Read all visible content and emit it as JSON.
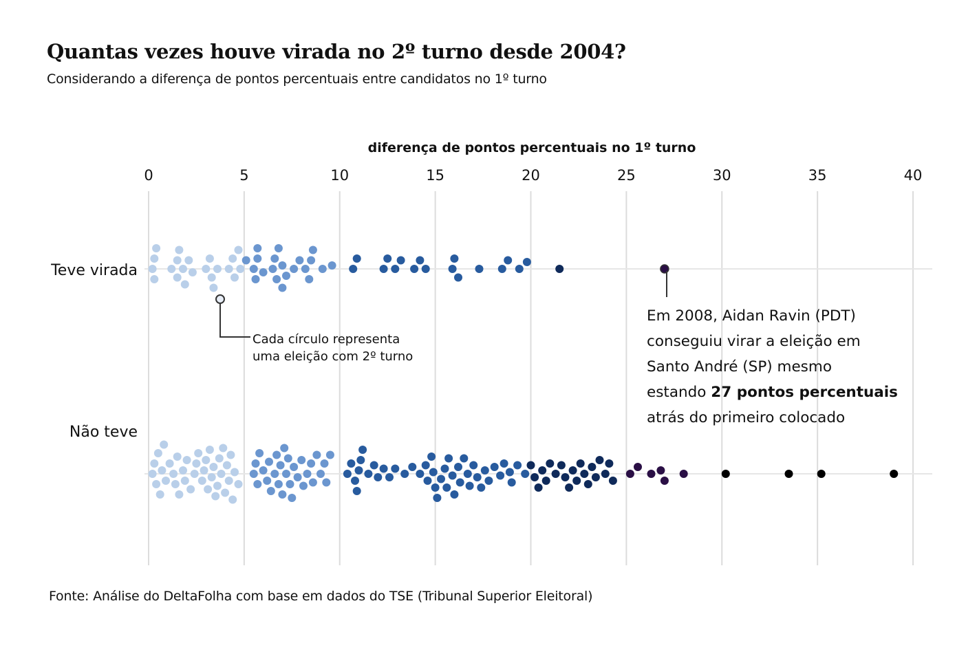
{
  "header": {
    "title": "Quantas vezes houve virada no 2º turno desde 2004?",
    "subtitle": "Considerando a diferença de pontos percentuais entre candidatos no 1º turno"
  },
  "footer": {
    "source": "Fonte: Análise do DeltaFolha com base em dados do TSE (Tribunal Superior Eleitoral)"
  },
  "chart_data": {
    "type": "scatter",
    "subtype": "beeswarm",
    "xlabel": "diferença de pontos percentuais no 1º turno",
    "ylabel": "",
    "xlim": [
      0,
      40
    ],
    "xticks": [
      0,
      5,
      10,
      15,
      20,
      25,
      30,
      35,
      40
    ],
    "grid": true,
    "legend": "none",
    "categories": [
      "Teve virada",
      "Não teve"
    ],
    "color_scale": [
      "#b9cfe9",
      "#6b96cf",
      "#285b9e",
      "#0f2a5a",
      "#2a0f45",
      "#000000"
    ],
    "color_scale_breaks": [
      5,
      10,
      20,
      25,
      30
    ],
    "series": [
      {
        "name": "Teve virada",
        "values": [
          0.2,
          0.3,
          0.3,
          0.4,
          1.2,
          1.5,
          1.5,
          1.6,
          1.8,
          1.9,
          2.1,
          2.3,
          3.0,
          3.2,
          3.3,
          3.4,
          3.6,
          4.2,
          4.4,
          4.5,
          4.7,
          4.8,
          5.1,
          5.5,
          5.6,
          5.7,
          5.7,
          6.0,
          6.5,
          6.6,
          6.7,
          6.8,
          7.0,
          7.0,
          7.2,
          7.6,
          7.9,
          8.2,
          8.4,
          8.5,
          8.6,
          9.1,
          9.6,
          10.7,
          10.9,
          12.3,
          12.5,
          12.9,
          13.2,
          13.9,
          14.2,
          14.5,
          15.9,
          16.0,
          16.2,
          17.3,
          18.5,
          18.8,
          19.4,
          19.8,
          21.5,
          27.0
        ]
      },
      {
        "name": "Não teve",
        "values": [
          0.2,
          0.3,
          0.4,
          0.5,
          0.6,
          0.7,
          0.8,
          0.9,
          1.1,
          1.3,
          1.4,
          1.5,
          1.6,
          1.8,
          1.9,
          2.0,
          2.2,
          2.4,
          2.5,
          2.6,
          2.8,
          2.9,
          3.0,
          3.1,
          3.2,
          3.3,
          3.4,
          3.5,
          3.6,
          3.7,
          3.8,
          3.9,
          4.0,
          4.1,
          4.2,
          4.3,
          4.4,
          4.5,
          4.7,
          5.5,
          5.6,
          5.7,
          5.8,
          6.0,
          6.2,
          6.3,
          6.4,
          6.6,
          6.7,
          6.8,
          6.9,
          7.0,
          7.1,
          7.2,
          7.3,
          7.4,
          7.5,
          7.6,
          7.8,
          8.0,
          8.1,
          8.3,
          8.5,
          8.6,
          8.8,
          9.0,
          9.2,
          9.3,
          9.5,
          10.4,
          10.6,
          10.8,
          10.9,
          11.0,
          11.1,
          11.2,
          11.5,
          11.8,
          12.0,
          12.3,
          12.6,
          12.9,
          13.4,
          13.8,
          14.2,
          14.5,
          14.6,
          14.8,
          14.9,
          15.0,
          15.1,
          15.3,
          15.5,
          15.6,
          15.7,
          15.9,
          16.0,
          16.2,
          16.3,
          16.5,
          16.7,
          16.8,
          17.0,
          17.2,
          17.4,
          17.6,
          17.8,
          18.1,
          18.4,
          18.6,
          18.9,
          19.0,
          19.3,
          19.7,
          20.0,
          20.2,
          20.4,
          20.6,
          20.8,
          21.0,
          21.3,
          21.6,
          21.8,
          22.0,
          22.2,
          22.4,
          22.6,
          22.8,
          23.0,
          23.2,
          23.4,
          23.6,
          23.9,
          24.1,
          24.3,
          25.2,
          25.6,
          26.3,
          26.8,
          27.0,
          28.0,
          30.2,
          33.5,
          35.2,
          39.0
        ]
      }
    ],
    "annotations": [
      {
        "id": "circle-note",
        "lines": [
          "Cada círculo representa",
          "uma eleição com 2º turno"
        ]
      },
      {
        "id": "highlight-note",
        "lines": [
          "Em 2008, Aidan Ravin (PDT)",
          "conseguiu virar a eleição em",
          "Santo André (SP) mesmo"
        ],
        "line4_pre": "estando ",
        "line4_bold": "27 pontos percentuais",
        "line5": "atrás do primeiro colocado"
      }
    ]
  }
}
